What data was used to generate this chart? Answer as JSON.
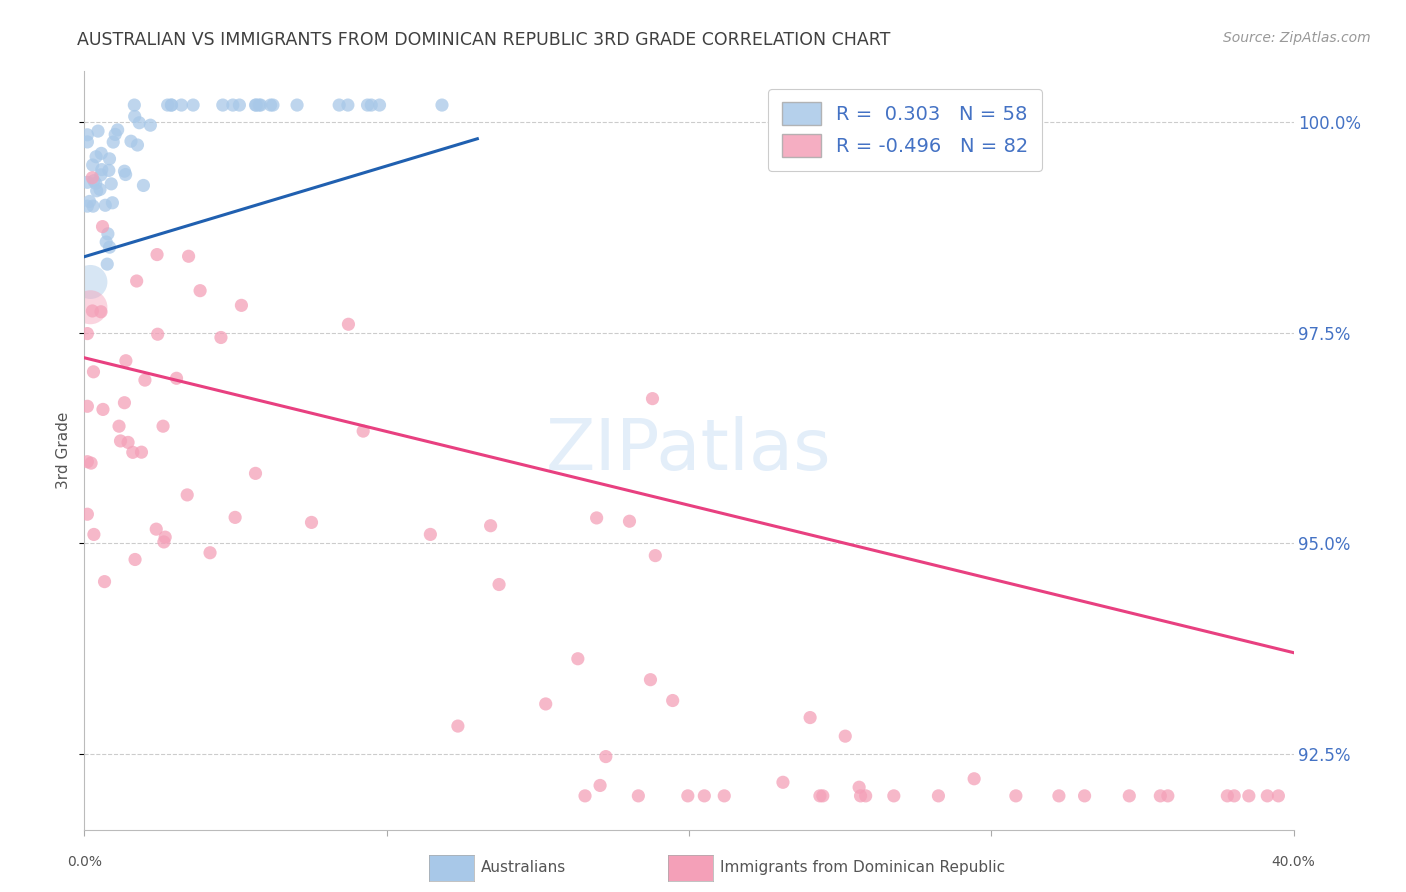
{
  "title": "AUSTRALIAN VS IMMIGRANTS FROM DOMINICAN REPUBLIC 3RD GRADE CORRELATION CHART",
  "source": "Source: ZipAtlas.com",
  "ylabel": "3rd Grade",
  "xlim": [
    0.0,
    0.4
  ],
  "ylim": [
    0.916,
    1.006
  ],
  "yticks": [
    0.925,
    0.95,
    0.975,
    1.0
  ],
  "ytick_labels": [
    "92.5%",
    "95.0%",
    "97.5%",
    "100.0%"
  ],
  "blue_r": 0.303,
  "blue_n": 58,
  "pink_r": -0.496,
  "pink_n": 82,
  "blue_color": "#a8c8e8",
  "pink_color": "#f4a0b8",
  "blue_line_color": "#2060b0",
  "pink_line_color": "#e84080",
  "legend_text_color": "#4472c4",
  "right_axis_color": "#4472c4",
  "title_color": "#404040",
  "watermark": "ZIPatlas",
  "blue_line_x0": 0.0,
  "blue_line_y0": 0.984,
  "blue_line_x1": 0.13,
  "blue_line_y1": 0.998,
  "pink_line_x0": 0.0,
  "pink_line_y0": 0.972,
  "pink_line_x1": 0.4,
  "pink_line_y1": 0.937,
  "blue_size": 90,
  "pink_size": 90
}
